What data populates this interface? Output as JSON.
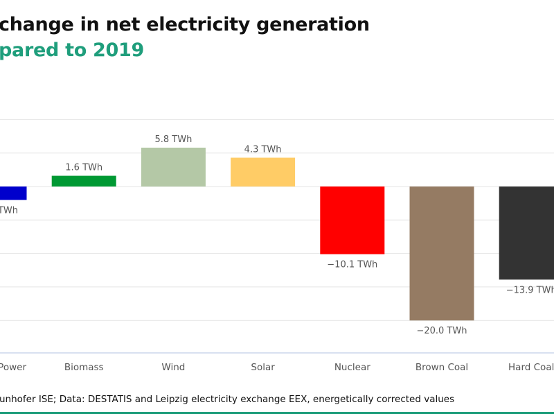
{
  "title": "change in net electricity generation",
  "subtitle": "pared to 2019",
  "source": "unhofer ISE; Data: DESTATIS and Leipzig electricity exchange EEX, energetically corrected values",
  "chart_data": {
    "type": "bar",
    "categories": [
      "Power",
      "Biomass",
      "Wind",
      "Solar",
      "Nuclear",
      "Brown Coal",
      "Hard Coal"
    ],
    "values": [
      -2.0,
      1.6,
      5.8,
      4.3,
      -10.1,
      -20.0,
      -13.9
    ],
    "data_labels": [
      "TWh",
      "1.6 TWh",
      "5.8 TWh",
      "4.3 TWh",
      "−10.1 TWh",
      "−20.0 TWh",
      "−13.9 TWh"
    ],
    "colors": [
      "#0000cc",
      "#009933",
      "#b4c8a6",
      "#ffcc66",
      "#ff0000",
      "#957b63",
      "#333333"
    ],
    "unit": "TWh",
    "ylim": [
      -20,
      10
    ],
    "grid": true,
    "title_color": "#1f9e7c"
  }
}
